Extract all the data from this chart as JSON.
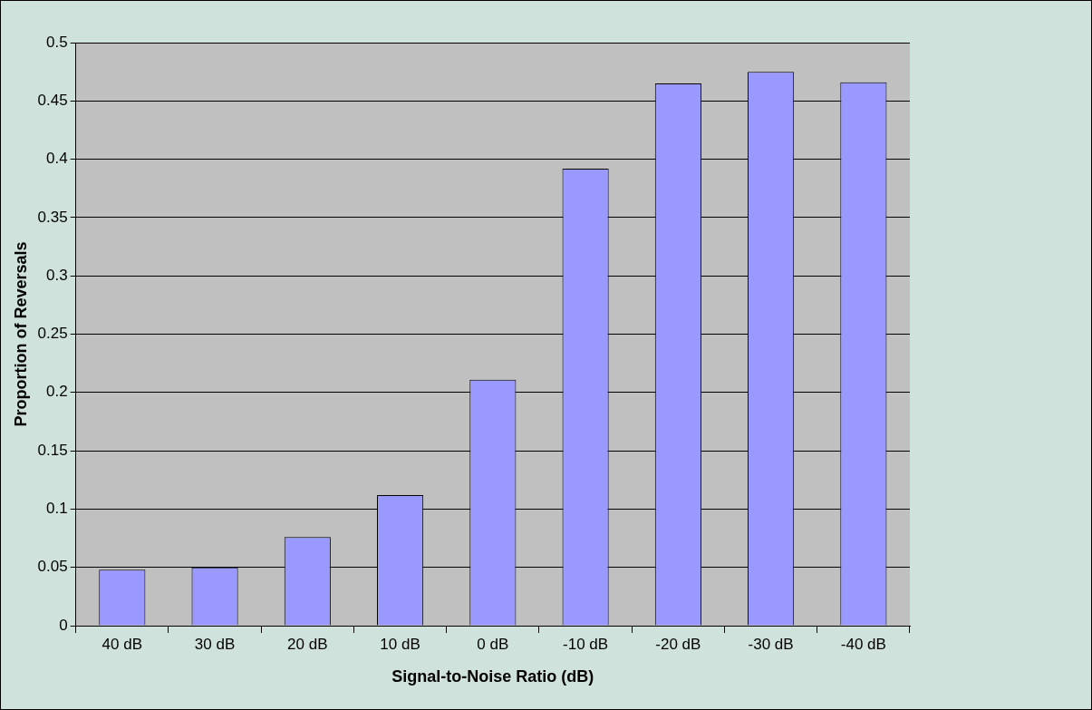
{
  "chart_data": {
    "type": "bar",
    "xlabel": "Signal-to-Noise Ratio (dB)",
    "ylabel": "Proportion of Reversals",
    "categories": [
      "40 dB",
      "30 dB",
      "20 dB",
      "10 dB",
      "0 dB",
      "-10 dB",
      "-20 dB",
      "-30 dB",
      "-40 dB"
    ],
    "values": [
      0.048,
      0.05,
      0.076,
      0.112,
      0.211,
      0.392,
      0.465,
      0.475,
      0.466
    ],
    "color": "#9999ff",
    "ylim": [
      0,
      0.5
    ],
    "yticks": [
      0,
      0.05,
      0.1,
      0.15,
      0.2,
      0.25,
      0.3,
      0.35,
      0.4,
      0.45,
      0.5
    ],
    "grid": "y"
  }
}
